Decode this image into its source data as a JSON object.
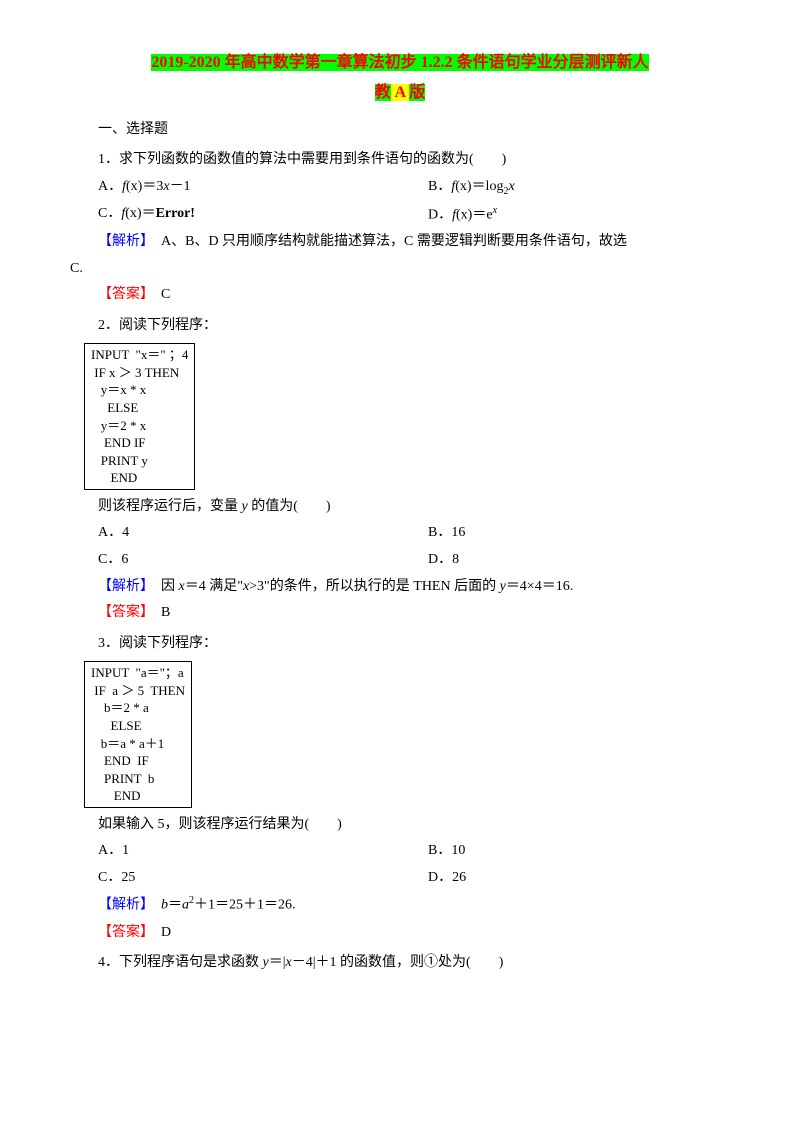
{
  "title": {
    "part1": "2019-2020 年高中数学第一章算法初步 1.2.2 条件语句学业分层测评新人",
    "part2a": "教",
    "part2b": " A ",
    "part2c": "版"
  },
  "section_heading": "一、选择题",
  "q1": {
    "stem": "1．求下列函数的函数值的算法中需要用到条件语句的函数为(　　)",
    "optA_pre": "A．",
    "optA_fx": "f",
    "optA_x": "(x)",
    "optA_eq": "＝3",
    "optA_var": "x",
    "optA_tail": "－1",
    "optB_pre": "B．",
    "optB_fx": "f",
    "optB_x": "(x)",
    "optB_eq": "＝log",
    "optB_sub": "2",
    "optB_var": "x",
    "optC_pre": "C．",
    "optC_fx": "f",
    "optC_x": "(x)",
    "optC_eq": "＝",
    "optC_err": "Error!",
    "optD_pre": "D．",
    "optD_fx": "f",
    "optD_x": "(x)",
    "optD_eq": "＝e",
    "optD_sup": "x",
    "analysis_label": "【解析】",
    "analysis_text": "　A、B、D 只用顺序结构就能描述算法，C 需要逻辑判断要用条件语句，故选",
    "analysis_tail": "C.",
    "answer_label": "【答案】",
    "answer_text": "　C"
  },
  "q2": {
    "stem": "2．阅读下列程序：",
    "code": [
      "INPUT  \"x＝\" ；4",
      " IF x ＞ 3 THEN",
      "   y＝x * x",
      "     ELSE",
      "   y＝2 * x",
      "    END IF",
      "   PRINT y",
      "      END"
    ],
    "after": "则该程序运行后，变量 ",
    "after_var": "y",
    "after_tail": " 的值为(　　)",
    "optA": "A．4",
    "optB": "B．16",
    "optC": "C．6",
    "optD": "D．8",
    "analysis_label": "【解析】",
    "analysis_pre": "　因 ",
    "analysis_x": "x",
    "analysis_mid": "＝4 满足\"",
    "analysis_x2": "x",
    "analysis_mid2": ">3\"的条件，所以执行的是 THEN 后面的 ",
    "analysis_y": "y",
    "analysis_tail": "＝4×4＝16.",
    "answer_label": "【答案】",
    "answer_text": "　B"
  },
  "q3": {
    "stem": "3．阅读下列程序：",
    "code": [
      "INPUT  \"a＝\"；a",
      " IF  a ＞ 5  THEN",
      "    b＝2 * a",
      "      ELSE",
      "   b＝a * a＋1",
      "    END  IF",
      "    PRINT  b",
      "       END"
    ],
    "after": "如果输入 5，则该程序运行结果为(　　)",
    "optA": "A．1",
    "optB": "B．10",
    "optC": "C．25",
    "optD": "D．26",
    "analysis_label": "【解析】",
    "analysis_b": "b",
    "analysis_eq": "＝",
    "analysis_a": "a",
    "analysis_sup": "2",
    "analysis_tail": "＋1＝25＋1＝26.",
    "answer_label": "【答案】",
    "answer_text": "　D"
  },
  "q4": {
    "stem_pre": "4．下列程序语句是求函数 ",
    "stem_y": "y",
    "stem_mid": "＝|",
    "stem_x": "x",
    "stem_tail": "－4|＋1 的函数值，则①处为(　　)"
  }
}
